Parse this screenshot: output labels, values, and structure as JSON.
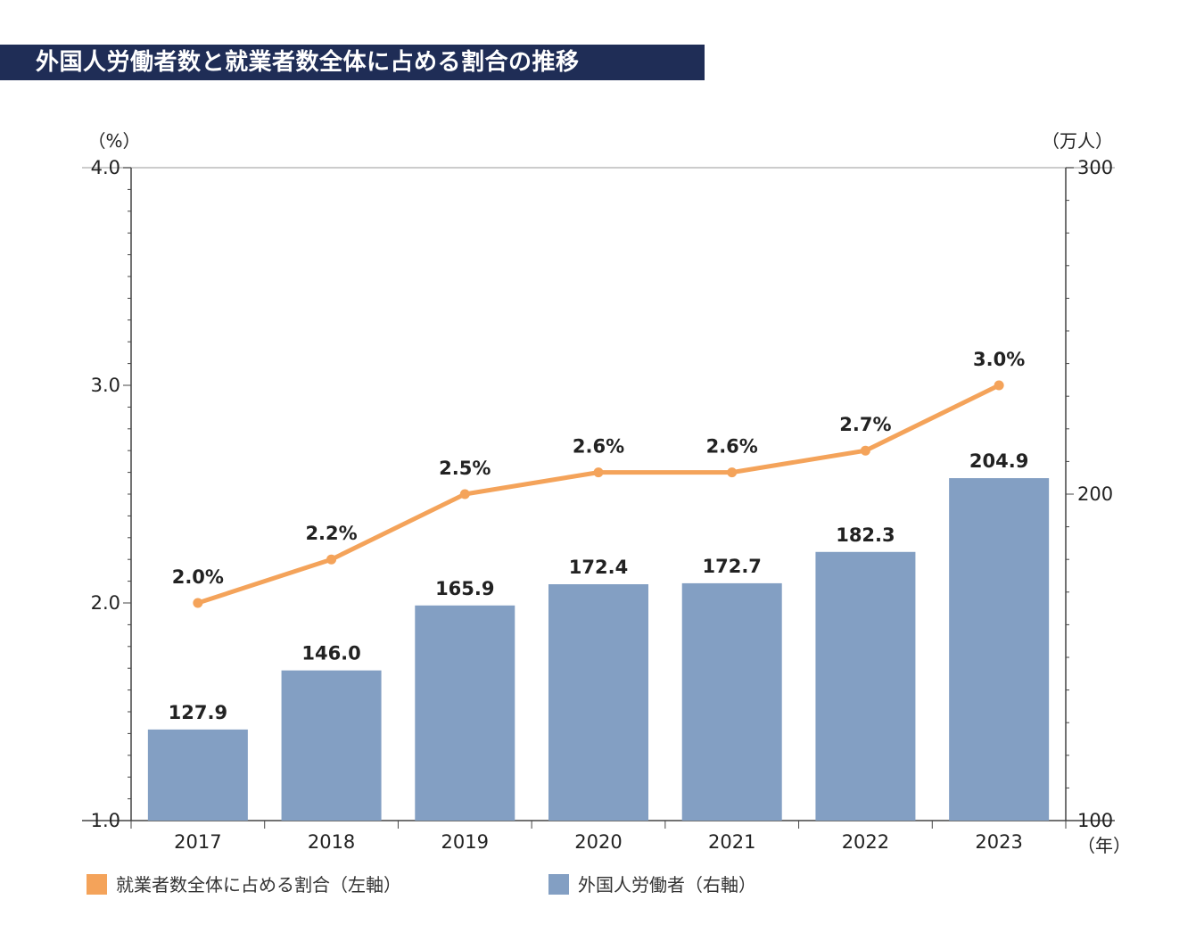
{
  "title": "外国人労働者数と就業者数全体に占める割合の推移",
  "colors": {
    "title_bg": "#1f2d56",
    "bar": "#839fc3",
    "line": "#f4a35a"
  },
  "chart_data": {
    "type": "bar+line",
    "categories": [
      "2017",
      "2018",
      "2019",
      "2020",
      "2021",
      "2022",
      "2023"
    ],
    "x_unit": "（年）",
    "left_axis": {
      "unit": "（%）",
      "ylim": [
        1.0,
        4.0
      ],
      "ticks": [
        "1.0",
        "2.0",
        "3.0",
        "4.0"
      ]
    },
    "right_axis": {
      "unit": "（万人）",
      "ylim": [
        100,
        300
      ],
      "ticks": [
        "100",
        "200",
        "300"
      ]
    },
    "series": [
      {
        "name": "外国人労働者（右軸）",
        "type": "bar",
        "axis": "right",
        "values": [
          127.9,
          146.0,
          165.9,
          172.4,
          172.7,
          182.3,
          204.9
        ],
        "labels": [
          "127.9",
          "146.0",
          "165.9",
          "172.4",
          "172.7",
          "182.3",
          "204.9"
        ]
      },
      {
        "name": "就業者数全体に占める割合（左軸）",
        "type": "line",
        "axis": "left",
        "values": [
          2.0,
          2.2,
          2.5,
          2.6,
          2.6,
          2.7,
          3.0
        ],
        "labels": [
          "2.0%",
          "2.2%",
          "2.5%",
          "2.6%",
          "2.6%",
          "2.7%",
          "3.0%"
        ]
      }
    ],
    "grid": false,
    "legend": {
      "position": "bottom",
      "items": [
        "就業者数全体に占める割合（左軸）",
        "外国人労働者（右軸）"
      ]
    }
  }
}
